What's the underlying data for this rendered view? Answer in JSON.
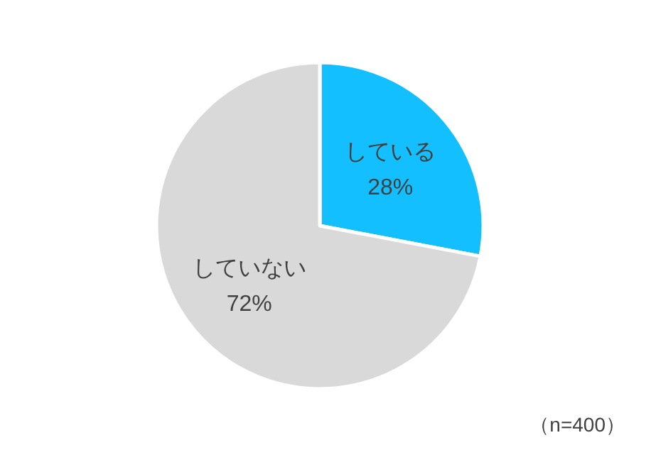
{
  "chart_data": {
    "type": "pie",
    "categories": [
      "している",
      "していない"
    ],
    "values": [
      28,
      72
    ],
    "colors": [
      "#14bfff",
      "#d9d9d9"
    ],
    "value_labels": [
      "28%",
      "72%"
    ],
    "annotations": [
      "（n=400）"
    ]
  }
}
